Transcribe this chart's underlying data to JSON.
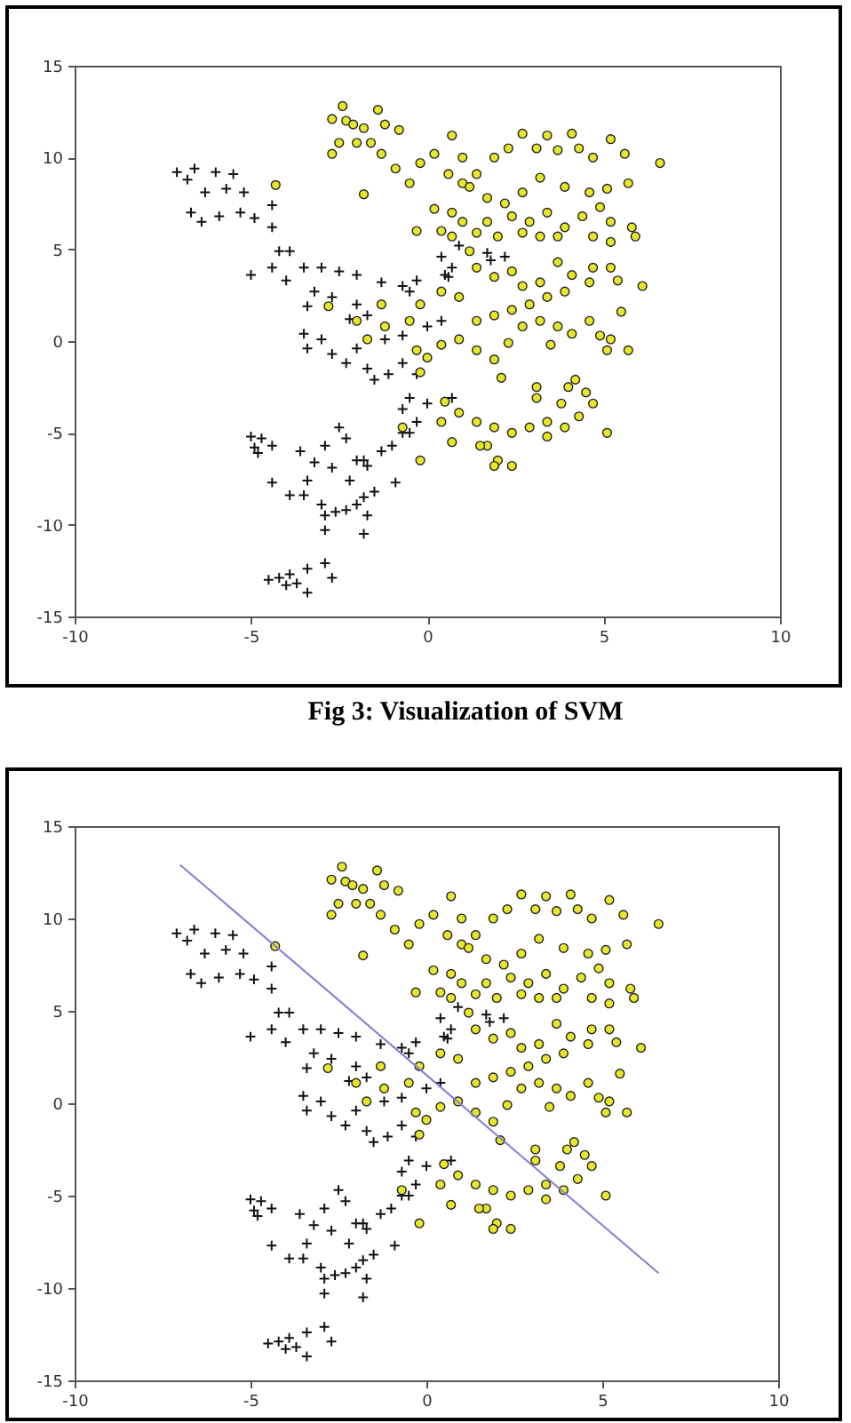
{
  "chart_data": [
    {
      "type": "scatter",
      "annotations": [
        "Fig 3: Visualization of SVM"
      ],
      "xlim": [
        -10,
        10
      ],
      "ylim": [
        -15,
        15
      ],
      "xticks": [
        -10,
        -5,
        0,
        5,
        10
      ],
      "yticks": [
        -15,
        -10,
        -5,
        0,
        5,
        10,
        15
      ],
      "series": [
        {
          "color": "#111111",
          "marker": "cross",
          "x": [
            -7.1,
            -6.6,
            -6.0,
            -5.5,
            -6.8,
            -6.3,
            -5.7,
            -5.2,
            -6.7,
            -6.4,
            -5.9,
            -5.3,
            -4.9,
            -4.4,
            -4.4,
            -4.2,
            -3.9,
            -4.4,
            -5.0,
            -4.0,
            -3.5,
            -3.0,
            -2.5,
            -2.0,
            -1.3,
            -0.7,
            -0.3,
            -0.5,
            -3.2,
            -2.7,
            -2.0,
            -1.7,
            -2.2,
            -3.4,
            -3.5,
            -3.0,
            -3.4,
            -2.7,
            -2.3,
            -2.0,
            -1.7,
            -1.5,
            -1.1,
            -1.2,
            -0.7,
            0.0,
            0.4,
            0.5,
            0.7,
            0.9,
            1.7,
            1.8,
            -0.7,
            -0.3,
            -0.5,
            -0.7,
            0.0,
            0.7,
            -0.3,
            -0.5,
            -5.0,
            -4.7,
            -4.9,
            -4.4,
            -4.8,
            -3.6,
            -3.2,
            -2.9,
            -2.5,
            -2.3,
            -2.7,
            -2.0,
            -1.8,
            -1.7,
            -1.3,
            -1.0,
            -0.7,
            -0.9,
            -3.4,
            -2.2,
            -4.4,
            -3.9,
            -3.5,
            -3.0,
            -2.9,
            -2.6,
            -2.3,
            -2.0,
            -1.8,
            -1.7,
            -1.8,
            -2.9,
            -1.5,
            -4.5,
            -4.2,
            -3.9,
            -3.7,
            -3.4,
            -3.4,
            -2.9,
            -2.7,
            -4.0,
            2.2,
            0.4,
            0.6
          ],
          "values": [
            9.2,
            9.4,
            9.2,
            9.1,
            8.8,
            8.1,
            8.3,
            8.1,
            7.0,
            6.5,
            6.8,
            7.0,
            6.7,
            7.4,
            6.2,
            4.9,
            4.9,
            4.0,
            3.6,
            3.3,
            4.0,
            4.0,
            3.8,
            3.6,
            3.2,
            3.0,
            3.3,
            2.7,
            2.7,
            2.4,
            2.0,
            1.4,
            1.2,
            1.9,
            0.4,
            0.1,
            -0.4,
            -0.7,
            -1.2,
            -0.4,
            -1.5,
            -2.1,
            -1.8,
            0.1,
            0.3,
            0.8,
            1.1,
            3.6,
            4.0,
            5.2,
            4.8,
            4.4,
            -1.2,
            -1.8,
            -3.1,
            -3.7,
            -3.4,
            -3.1,
            -4.4,
            -5.0,
            -5.2,
            -5.3,
            -5.8,
            -5.7,
            -6.1,
            -6.0,
            -6.6,
            -5.7,
            -4.7,
            -5.3,
            -6.9,
            -6.5,
            -6.5,
            -6.8,
            -6.0,
            -5.7,
            -5.0,
            -7.7,
            -7.6,
            -7.6,
            -7.7,
            -8.4,
            -8.4,
            -8.9,
            -9.5,
            -9.3,
            -9.2,
            -8.9,
            -8.5,
            -9.5,
            -10.5,
            -10.3,
            -8.2,
            -13.0,
            -12.9,
            -12.7,
            -13.2,
            -13.7,
            -12.4,
            -12.1,
            -12.9,
            -13.3,
            4.6,
            4.6,
            3.5
          ]
        },
        {
          "color": "#e6e62a",
          "marker": "circle",
          "x": [
            -2.7,
            -2.4,
            -2.3,
            -2.1,
            -1.8,
            -2.5,
            -2.0,
            -1.6,
            -1.4,
            -1.2,
            -0.8,
            -1.3,
            -0.9,
            -2.7,
            -1.8,
            -2.8,
            -4.3,
            -0.5,
            -0.2,
            0.2,
            0.7,
            1.0,
            0.6,
            1.0,
            1.4,
            1.9,
            2.3,
            2.7,
            3.1,
            3.4,
            3.7,
            4.1,
            4.3,
            4.7,
            5.2,
            5.6,
            6.6,
            5.7,
            5.8,
            5.9,
            5.1,
            4.6,
            3.9,
            3.2,
            2.7,
            2.2,
            1.7,
            1.2,
            0.7,
            0.2,
            -0.3,
            0.4,
            1.0,
            1.7,
            2.4,
            2.9,
            3.4,
            3.9,
            4.4,
            4.9,
            5.2,
            4.7,
            5.2,
            2.7,
            3.2,
            3.7,
            2.0,
            1.4,
            0.7,
            1.2,
            1.4,
            1.9,
            2.4,
            2.7,
            3.2,
            3.7,
            4.1,
            4.7,
            5.2,
            5.4,
            6.1,
            4.6,
            3.9,
            3.4,
            2.9,
            2.4,
            1.9,
            1.4,
            0.9,
            0.4,
            -0.2,
            -0.5,
            -0.3,
            0.0,
            0.4,
            0.9,
            1.4,
            1.9,
            2.3,
            2.7,
            3.2,
            3.7,
            4.1,
            4.6,
            4.9,
            5.2,
            5.5,
            5.7,
            5.1,
            3.5,
            -1.3,
            -1.7,
            -1.2,
            -0.2,
            2.1,
            -2.0,
            0.5,
            0.9,
            0.4,
            1.4,
            1.9,
            2.4,
            1.7,
            2.0,
            2.4,
            1.9,
            2.9,
            3.4,
            3.1,
            3.1,
            3.8,
            4.0,
            4.2,
            4.5,
            4.7,
            4.3,
            3.9,
            5.1,
            3.4,
            0.7,
            -0.2,
            -0.7,
            1.5
          ],
          "values": [
            12.1,
            12.8,
            12.0,
            11.8,
            11.6,
            10.8,
            10.8,
            10.8,
            12.6,
            11.8,
            11.5,
            10.2,
            9.4,
            10.2,
            8.0,
            1.9,
            8.5,
            8.6,
            9.7,
            10.2,
            11.2,
            10.0,
            9.1,
            8.6,
            9.1,
            10.0,
            10.5,
            11.3,
            10.5,
            11.2,
            10.4,
            11.3,
            10.5,
            10.0,
            11.0,
            10.2,
            9.7,
            8.6,
            6.2,
            5.7,
            8.3,
            8.1,
            8.4,
            8.9,
            8.1,
            7.5,
            7.8,
            8.4,
            7.0,
            7.2,
            6.0,
            6.0,
            6.5,
            6.5,
            6.8,
            6.5,
            7.0,
            6.2,
            6.8,
            7.3,
            6.5,
            5.7,
            5.4,
            5.9,
            5.7,
            5.7,
            5.7,
            5.9,
            5.7,
            4.9,
            4.0,
            3.5,
            3.8,
            3.0,
            3.2,
            4.3,
            3.6,
            4.0,
            4.0,
            3.3,
            3.0,
            3.2,
            2.7,
            2.4,
            2.0,
            1.7,
            1.4,
            1.1,
            2.4,
            2.7,
            2.0,
            1.1,
            -0.5,
            -0.9,
            -0.2,
            0.1,
            -0.5,
            -1.0,
            -0.1,
            0.8,
            1.1,
            0.8,
            0.4,
            1.1,
            0.3,
            0.1,
            1.6,
            -0.5,
            -0.5,
            -0.2,
            2.0,
            0.1,
            0.8,
            -1.7,
            -2.0,
            1.1,
            -3.3,
            -3.9,
            -4.4,
            -4.4,
            -4.7,
            -5.0,
            -5.7,
            -6.5,
            -6.8,
            -6.8,
            -4.7,
            -4.4,
            -3.1,
            -2.5,
            -3.4,
            -2.5,
            -2.1,
            -2.8,
            -3.4,
            -4.1,
            -4.7,
            -5.0,
            -5.2,
            -5.5,
            -6.5,
            -4.7,
            -5.7
          ]
        }
      ]
    },
    {
      "type": "scatter",
      "xlim": [
        -10,
        10
      ],
      "ylim": [
        -15,
        15
      ],
      "xticks": [
        -10,
        -5,
        0,
        5,
        10
      ],
      "yticks": [
        -15,
        -10,
        -5,
        0,
        5,
        10,
        15
      ],
      "series": [
        {
          "color": "#111111",
          "marker": "cross",
          "x": [
            -7.1,
            -6.6,
            -6.0,
            -5.5,
            -6.8,
            -6.3,
            -5.7,
            -5.2,
            -6.7,
            -6.4,
            -5.9,
            -5.3,
            -4.9,
            -4.4,
            -4.4,
            -4.2,
            -3.9,
            -4.4,
            -5.0,
            -4.0,
            -3.5,
            -3.0,
            -2.5,
            -2.0,
            -1.3,
            -0.7,
            -0.3,
            -0.5,
            -3.2,
            -2.7,
            -2.0,
            -1.7,
            -2.2,
            -3.4,
            -3.5,
            -3.0,
            -3.4,
            -2.7,
            -2.3,
            -2.0,
            -1.7,
            -1.5,
            -1.1,
            -1.2,
            -0.7,
            0.0,
            0.4,
            0.5,
            0.7,
            0.9,
            1.7,
            1.8,
            -0.7,
            -0.3,
            -0.5,
            -0.7,
            0.0,
            0.7,
            -0.3,
            -0.5,
            -5.0,
            -4.7,
            -4.9,
            -4.4,
            -4.8,
            -3.6,
            -3.2,
            -2.9,
            -2.5,
            -2.3,
            -2.7,
            -2.0,
            -1.8,
            -1.7,
            -1.3,
            -1.0,
            -0.7,
            -0.9,
            -3.4,
            -2.2,
            -4.4,
            -3.9,
            -3.5,
            -3.0,
            -2.9,
            -2.6,
            -2.3,
            -2.0,
            -1.8,
            -1.7,
            -1.8,
            -2.9,
            -1.5,
            -4.5,
            -4.2,
            -3.9,
            -3.7,
            -3.4,
            -3.4,
            -2.9,
            -2.7,
            -4.0,
            2.2,
            0.4,
            0.6
          ],
          "values": [
            9.2,
            9.4,
            9.2,
            9.1,
            8.8,
            8.1,
            8.3,
            8.1,
            7.0,
            6.5,
            6.8,
            7.0,
            6.7,
            7.4,
            6.2,
            4.9,
            4.9,
            4.0,
            3.6,
            3.3,
            4.0,
            4.0,
            3.8,
            3.6,
            3.2,
            3.0,
            3.3,
            2.7,
            2.7,
            2.4,
            2.0,
            1.4,
            1.2,
            1.9,
            0.4,
            0.1,
            -0.4,
            -0.7,
            -1.2,
            -0.4,
            -1.5,
            -2.1,
            -1.8,
            0.1,
            0.3,
            0.8,
            1.1,
            3.6,
            4.0,
            5.2,
            4.8,
            4.4,
            -1.2,
            -1.8,
            -3.1,
            -3.7,
            -3.4,
            -3.1,
            -4.4,
            -5.0,
            -5.2,
            -5.3,
            -5.8,
            -5.7,
            -6.1,
            -6.0,
            -6.6,
            -5.7,
            -4.7,
            -5.3,
            -6.9,
            -6.5,
            -6.5,
            -6.8,
            -6.0,
            -5.7,
            -5.0,
            -7.7,
            -7.6,
            -7.6,
            -7.7,
            -8.4,
            -8.4,
            -8.9,
            -9.5,
            -9.3,
            -9.2,
            -8.9,
            -8.5,
            -9.5,
            -10.5,
            -10.3,
            -8.2,
            -13.0,
            -12.9,
            -12.7,
            -13.2,
            -13.7,
            -12.4,
            -12.1,
            -12.9,
            -13.3,
            4.6,
            4.6,
            3.5
          ]
        },
        {
          "color": "#e6e62a",
          "marker": "circle",
          "x": [
            -2.7,
            -2.4,
            -2.3,
            -2.1,
            -1.8,
            -2.5,
            -2.0,
            -1.6,
            -1.4,
            -1.2,
            -0.8,
            -1.3,
            -0.9,
            -2.7,
            -1.8,
            -2.8,
            -4.3,
            -0.5,
            -0.2,
            0.2,
            0.7,
            1.0,
            0.6,
            1.0,
            1.4,
            1.9,
            2.3,
            2.7,
            3.1,
            3.4,
            3.7,
            4.1,
            4.3,
            4.7,
            5.2,
            5.6,
            6.6,
            5.7,
            5.8,
            5.9,
            5.1,
            4.6,
            3.9,
            3.2,
            2.7,
            2.2,
            1.7,
            1.2,
            0.7,
            0.2,
            -0.3,
            0.4,
            1.0,
            1.7,
            2.4,
            2.9,
            3.4,
            3.9,
            4.4,
            4.9,
            5.2,
            4.7,
            5.2,
            2.7,
            3.2,
            3.7,
            2.0,
            1.4,
            0.7,
            1.2,
            1.4,
            1.9,
            2.4,
            2.7,
            3.2,
            3.7,
            4.1,
            4.7,
            5.2,
            5.4,
            6.1,
            4.6,
            3.9,
            3.4,
            2.9,
            2.4,
            1.9,
            1.4,
            0.9,
            0.4,
            -0.2,
            -0.5,
            -0.3,
            0.0,
            0.4,
            0.9,
            1.4,
            1.9,
            2.3,
            2.7,
            3.2,
            3.7,
            4.1,
            4.6,
            4.9,
            5.2,
            5.5,
            5.7,
            5.1,
            3.5,
            -1.3,
            -1.7,
            -1.2,
            -0.2,
            2.1,
            -2.0,
            0.5,
            0.9,
            0.4,
            1.4,
            1.9,
            2.4,
            1.7,
            2.0,
            2.4,
            1.9,
            2.9,
            3.4,
            3.1,
            3.1,
            3.8,
            4.0,
            4.2,
            4.5,
            4.7,
            4.3,
            3.9,
            5.1,
            3.4,
            0.7,
            -0.2,
            -0.7,
            1.5
          ],
          "values": [
            12.1,
            12.8,
            12.0,
            11.8,
            11.6,
            10.8,
            10.8,
            10.8,
            12.6,
            11.8,
            11.5,
            10.2,
            9.4,
            10.2,
            8.0,
            1.9,
            8.5,
            8.6,
            9.7,
            10.2,
            11.2,
            10.0,
            9.1,
            8.6,
            9.1,
            10.0,
            10.5,
            11.3,
            10.5,
            11.2,
            10.4,
            11.3,
            10.5,
            10.0,
            11.0,
            10.2,
            9.7,
            8.6,
            6.2,
            5.7,
            8.3,
            8.1,
            8.4,
            8.9,
            8.1,
            7.5,
            7.8,
            8.4,
            7.0,
            7.2,
            6.0,
            6.0,
            6.5,
            6.5,
            6.8,
            6.5,
            7.0,
            6.2,
            6.8,
            7.3,
            6.5,
            5.7,
            5.4,
            5.9,
            5.7,
            5.7,
            5.7,
            5.9,
            5.7,
            4.9,
            4.0,
            3.5,
            3.8,
            3.0,
            3.2,
            4.3,
            3.6,
            4.0,
            4.0,
            3.3,
            3.0,
            3.2,
            2.7,
            2.4,
            2.0,
            1.7,
            1.4,
            1.1,
            2.4,
            2.7,
            2.0,
            1.1,
            -0.5,
            -0.9,
            -0.2,
            0.1,
            -0.5,
            -1.0,
            -0.1,
            0.8,
            1.1,
            0.8,
            0.4,
            1.1,
            0.3,
            0.1,
            1.6,
            -0.5,
            -0.5,
            -0.2,
            2.0,
            0.1,
            0.8,
            -1.7,
            -2.0,
            1.1,
            -3.3,
            -3.9,
            -4.4,
            -4.4,
            -4.7,
            -5.0,
            -5.7,
            -6.5,
            -6.8,
            -6.8,
            -4.7,
            -4.4,
            -3.1,
            -2.5,
            -3.4,
            -2.5,
            -2.1,
            -2.8,
            -3.4,
            -4.1,
            -4.7,
            -5.0,
            -5.2,
            -5.5,
            -6.5,
            -4.7,
            -5.7
          ]
        },
        {
          "type": "line",
          "color": "#7f7fd6",
          "x": [
            -7.0,
            6.6
          ],
          "values": [
            12.9,
            -9.2
          ]
        }
      ]
    }
  ]
}
